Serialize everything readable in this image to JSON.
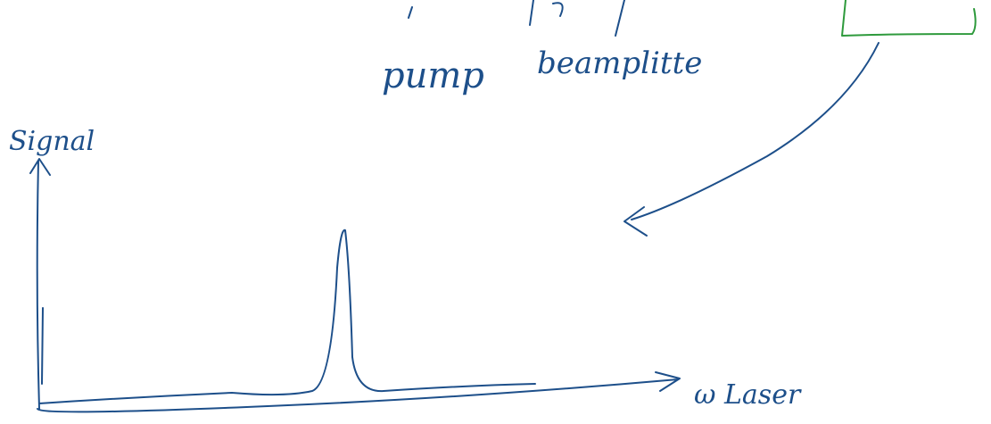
{
  "labels": {
    "pump": "pump",
    "beamsplitter": "beamplitte",
    "y_axis": "Signal",
    "x_axis": "ω Laser"
  }
}
